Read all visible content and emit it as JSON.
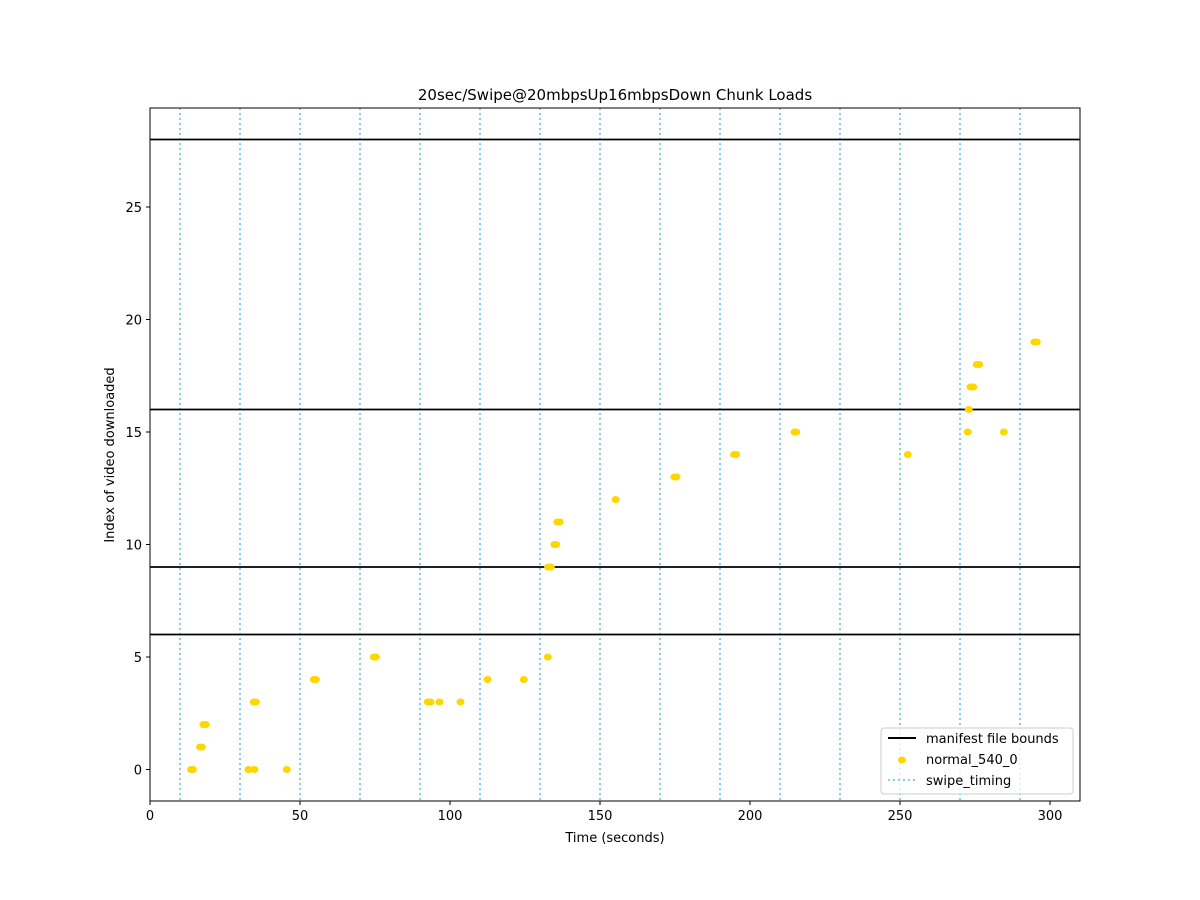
{
  "chart_data": {
    "type": "scatter",
    "title": "20sec/Swipe@20mbpsUp16mbpsDown Chunk Loads",
    "xlabel": "Time (seconds)",
    "ylabel": "Index of video downloaded",
    "xlim": [
      0,
      310
    ],
    "ylim": [
      -1.4,
      29.4
    ],
    "xticks": [
      0,
      50,
      100,
      150,
      200,
      250,
      300
    ],
    "yticks": [
      0,
      5,
      10,
      15,
      20,
      25
    ],
    "grid": false,
    "legend_position": "lower right",
    "series": [
      {
        "name": "normal_540_0",
        "kind": "scatter",
        "color": "#FFD700",
        "points": [
          [
            13.7,
            0
          ],
          [
            14.3,
            0
          ],
          [
            16.7,
            1
          ],
          [
            17.3,
            1
          ],
          [
            17.8,
            2
          ],
          [
            18.6,
            2
          ],
          [
            32.8,
            0
          ],
          [
            34.8,
            0
          ],
          [
            34.6,
            3
          ],
          [
            35.3,
            3
          ],
          [
            45.6,
            0
          ],
          [
            54.6,
            4
          ],
          [
            55.3,
            4
          ],
          [
            74.6,
            5
          ],
          [
            75.3,
            5
          ],
          [
            92.6,
            3
          ],
          [
            93.5,
            3
          ],
          [
            96.5,
            3
          ],
          [
            103.5,
            3
          ],
          [
            112.5,
            4
          ],
          [
            124.6,
            4
          ],
          [
            132.6,
            5
          ],
          [
            132.7,
            9
          ],
          [
            133.6,
            9
          ],
          [
            134.8,
            10
          ],
          [
            135.4,
            10
          ],
          [
            135.8,
            11
          ],
          [
            136.6,
            11
          ],
          [
            155.2,
            12
          ],
          [
            174.8,
            13
          ],
          [
            175.5,
            13
          ],
          [
            194.7,
            14
          ],
          [
            195.4,
            14
          ],
          [
            214.8,
            15
          ],
          [
            215.4,
            15
          ],
          [
            252.6,
            14
          ],
          [
            272.6,
            15
          ],
          [
            272.9,
            16
          ],
          [
            273.5,
            17
          ],
          [
            274.4,
            17
          ],
          [
            275.6,
            18
          ],
          [
            276.4,
            18
          ],
          [
            284.6,
            15
          ],
          [
            294.8,
            19
          ],
          [
            295.6,
            19
          ]
        ]
      }
    ],
    "hlines": {
      "name": "manifest file bounds",
      "color": "#000000",
      "values": [
        6,
        9,
        16,
        28
      ]
    },
    "vlines": {
      "name": "swipe_timing",
      "color": "#87CEEB",
      "style": "dotted",
      "values": [
        10,
        30,
        50,
        70,
        90,
        110,
        130,
        150,
        170,
        190,
        210,
        230,
        250,
        270,
        290
      ]
    },
    "legend": [
      "manifest file bounds",
      "normal_540_0",
      "swipe_timing"
    ]
  }
}
